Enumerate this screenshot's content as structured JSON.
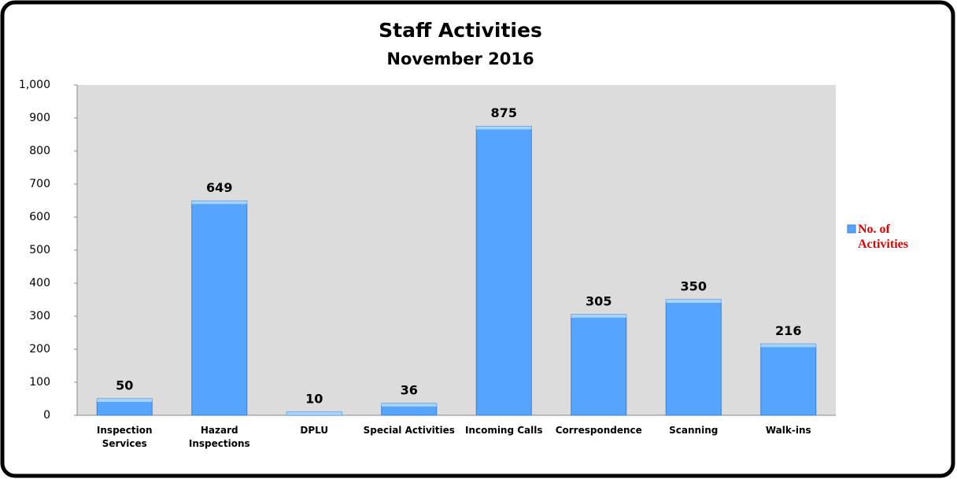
{
  "chart_data": {
    "type": "bar",
    "title": "Staff Activities",
    "subtitle": "November 2016",
    "categories": [
      "Inspection\nServices",
      "Hazard\nInspections",
      "DPLU",
      "Special Activities",
      "Incoming Calls",
      "Correspondence",
      "Scanning",
      "Walk-ins"
    ],
    "series": [
      {
        "name": "No. of Activities",
        "color": "#55a5ff",
        "values": [
          50,
          649,
          10,
          36,
          875,
          305,
          350,
          216
        ]
      }
    ],
    "ylim": [
      0,
      1000
    ],
    "yticks": [
      0,
      100,
      200,
      300,
      400,
      500,
      600,
      700,
      800,
      900,
      {
        "value": 1000,
        "label": "1,000"
      }
    ],
    "legend": "right"
  }
}
